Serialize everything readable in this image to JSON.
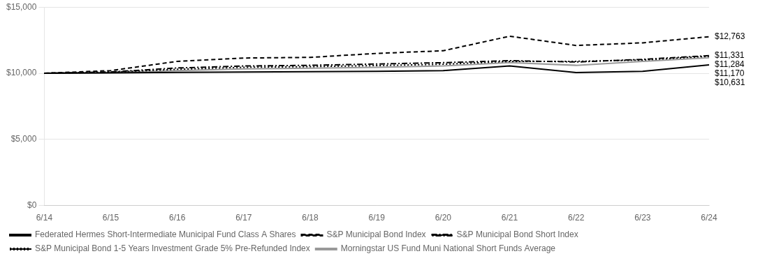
{
  "chart_data": {
    "type": "line",
    "categories": [
      "6/14",
      "6/15",
      "6/16",
      "6/17",
      "6/18",
      "6/19",
      "6/20",
      "6/21",
      "6/22",
      "6/23",
      "6/24"
    ],
    "series": [
      {
        "name": "Federated Hermes Short-Intermediate Municipal Fund Class A Shares",
        "color": "#000000",
        "line_style": "solid",
        "values": [
          10000,
          10020,
          10060,
          10090,
          10120,
          10150,
          10200,
          10550,
          10050,
          10150,
          10631
        ]
      },
      {
        "name": "S&P Municipal Bond Index",
        "color": "#000000",
        "line_style": "dashed",
        "values": [
          10000,
          10200,
          10900,
          11150,
          11200,
          11500,
          11700,
          12800,
          12100,
          12300,
          12763
        ]
      },
      {
        "name": "S&P Municipal Bond Short Index",
        "color": "#000000",
        "line_style": "dashdot",
        "values": [
          10000,
          10100,
          10400,
          10550,
          10600,
          10700,
          10800,
          10950,
          10850,
          11050,
          11331
        ]
      },
      {
        "name": "S&P Municipal Bond 1-5 Years Investment Grade 5% Pre-Refunded Index",
        "color": "#000000",
        "line_style": "dotted",
        "values": [
          10000,
          10080,
          10300,
          10450,
          10500,
          10580,
          10680,
          10900,
          10900,
          11000,
          11284
        ]
      },
      {
        "name": "Morningstar US Fund Muni National Short Funds Average",
        "color": "#999999",
        "line_style": "solid",
        "values": [
          10000,
          10050,
          10200,
          10330,
          10380,
          10450,
          10550,
          10800,
          10600,
          10900,
          11170
        ]
      }
    ],
    "annotations": [
      {
        "text": "$12,763",
        "value": 12763
      },
      {
        "text": "$11,331",
        "value": 11331
      },
      {
        "text": "$11,284",
        "value": 11284
      },
      {
        "text": "$11,170",
        "value": 11170
      },
      {
        "text": "$10,631",
        "value": 10631
      }
    ],
    "ylim": [
      0,
      15000
    ],
    "yticks": [
      {
        "value": 0,
        "label": "$0"
      },
      {
        "value": 5000,
        "label": "$5,000"
      },
      {
        "value": 10000,
        "label": "$10,000"
      },
      {
        "value": 15000,
        "label": "$15,000"
      }
    ],
    "grid": "y",
    "legend": "bottom"
  }
}
